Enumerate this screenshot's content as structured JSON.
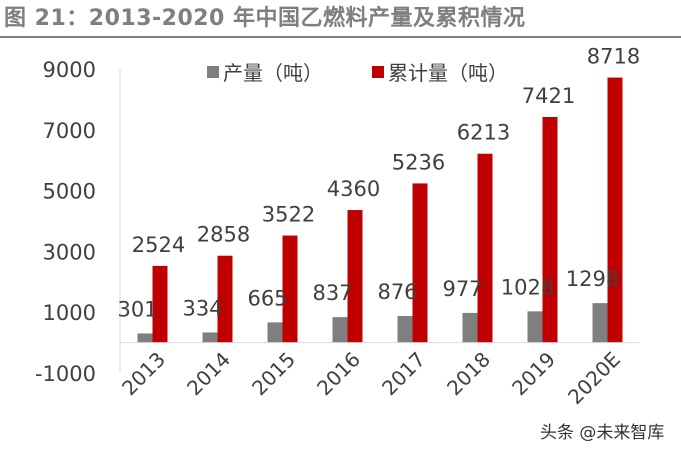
{
  "title": "图 21：2013-2020 年中国乙燃料产量及累积情况",
  "watermark": "头条 @未来智库",
  "chart_data": {
    "type": "bar",
    "categories": [
      "2013",
      "2014",
      "2015",
      "2016",
      "2017",
      "2018",
      "2019",
      "2020E"
    ],
    "series": [
      {
        "name": "产量（吨）",
        "color": "#7f7f7f",
        "values": [
          301,
          334,
          665,
          837,
          876,
          977,
          1028,
          1298
        ]
      },
      {
        "name": "累计量（吨）",
        "color": "#c00000",
        "values": [
          2524,
          2858,
          3522,
          4360,
          5236,
          6213,
          7421,
          8718
        ]
      }
    ],
    "ylim": [
      -1000,
      9000
    ],
    "yticks": [
      9000,
      7000,
      5000,
      3000,
      1000,
      -1000
    ],
    "legend": "top",
    "grid": false
  }
}
